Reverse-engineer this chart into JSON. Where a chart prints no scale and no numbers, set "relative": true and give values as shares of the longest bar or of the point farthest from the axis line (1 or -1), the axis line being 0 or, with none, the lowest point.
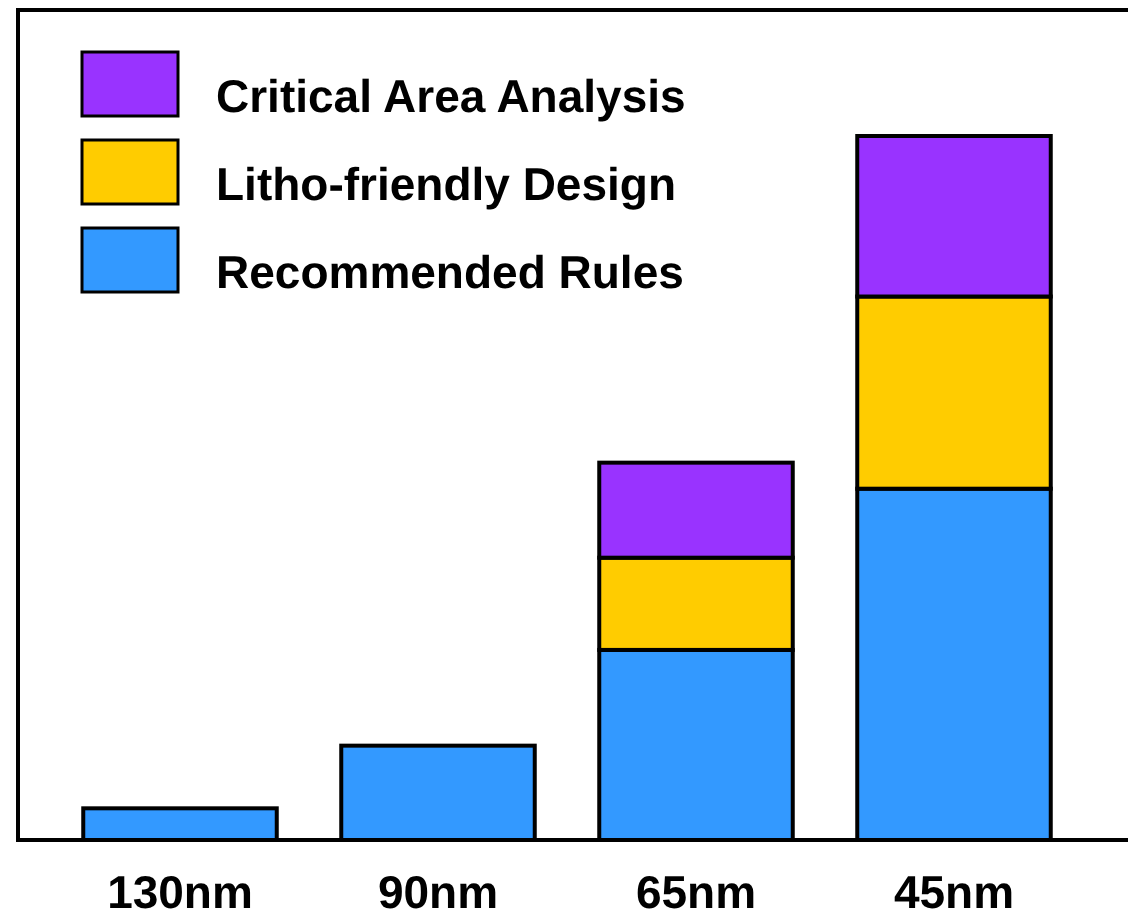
{
  "chart_data": {
    "type": "bar",
    "stacked": true,
    "relative": true,
    "legend": "top left",
    "categories": [
      "130nm",
      "90nm",
      "65nm",
      "45nm"
    ],
    "series": [
      {
        "name": "Recommended Rules",
        "color": "#3399ff",
        "values": [
          0.045,
          0.134,
          0.27,
          0.499
        ]
      },
      {
        "name": "Litho-friendly Design",
        "color": "#ffcc00",
        "values": [
          null,
          null,
          0.131,
          0.273
        ]
      },
      {
        "name": "Critical Area Analysis",
        "color": "#9933ff",
        "values": [
          null,
          null,
          0.135,
          0.228
        ]
      }
    ]
  }
}
